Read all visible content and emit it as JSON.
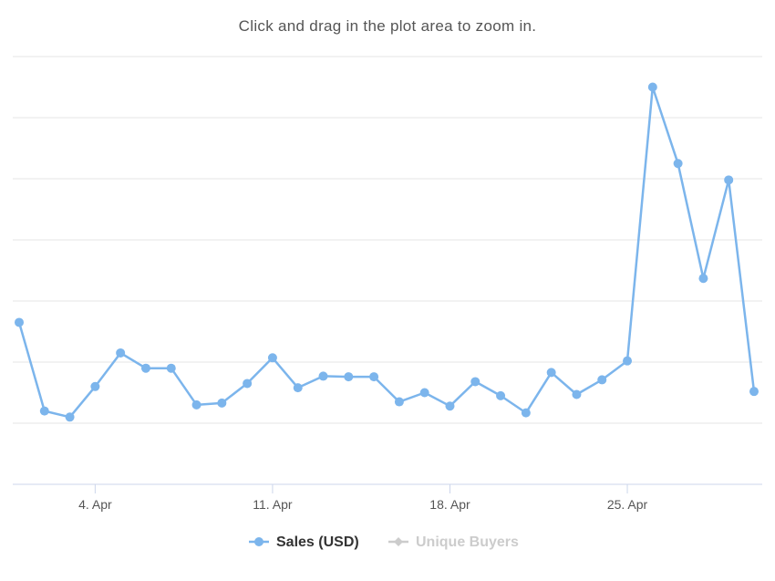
{
  "subtitle": "Click and drag in the plot area to zoom in.",
  "colors": {
    "series_primary": "#7cb5ec",
    "series_inactive": "#cccccc",
    "grid": "#e6e6e6",
    "axis": "#ccd6eb",
    "text": "#555555",
    "legend_active_text": "#333333"
  },
  "legend": {
    "items": [
      {
        "label": "Sales (USD)",
        "active": true
      },
      {
        "label": "Unique Buyers",
        "active": false
      }
    ],
    "placement": "bottom-center"
  },
  "chart_data": {
    "type": "line",
    "title": "",
    "subtitle": "Click and drag in the plot area to zoom in.",
    "xlabel": "",
    "ylabel": "",
    "x_ticks": [
      "4. Apr",
      "11. Apr",
      "18. Apr",
      "25. Apr"
    ],
    "y_axis_labels_shown": false,
    "grid": true,
    "series": [
      {
        "name": "Sales (USD)",
        "visible": true,
        "x": [
          "2018-04-01",
          "2018-04-02",
          "2018-04-03",
          "2018-04-04",
          "2018-04-05",
          "2018-04-06",
          "2018-04-07",
          "2018-04-08",
          "2018-04-09",
          "2018-04-10",
          "2018-04-11",
          "2018-04-12",
          "2018-04-13",
          "2018-04-14",
          "2018-04-15",
          "2018-04-16",
          "2018-04-17",
          "2018-04-18",
          "2018-04-19",
          "2018-04-20",
          "2018-04-21",
          "2018-04-22",
          "2018-04-23",
          "2018-04-24",
          "2018-04-25",
          "2018-04-26",
          "2018-04-27",
          "2018-04-28",
          "2018-04-29",
          "2018-04-30"
        ],
        "values": [
          2.65,
          1.2,
          1.1,
          1.6,
          2.15,
          1.9,
          1.9,
          1.3,
          1.33,
          1.65,
          2.07,
          1.58,
          1.77,
          1.76,
          1.76,
          1.35,
          1.5,
          1.28,
          1.68,
          1.45,
          1.17,
          1.83,
          1.47,
          1.71,
          2.02,
          6.5,
          5.25,
          3.37,
          4.98,
          1.52
        ]
      },
      {
        "name": "Unique Buyers",
        "visible": false,
        "values": []
      }
    ]
  }
}
